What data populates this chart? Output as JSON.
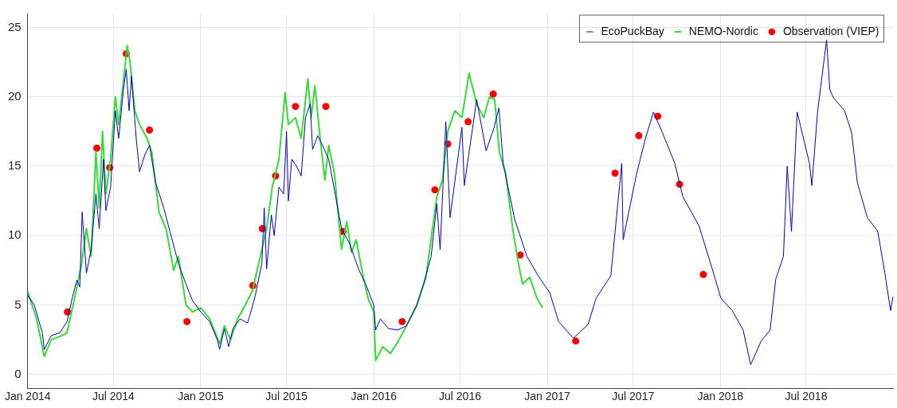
{
  "chart_data": {
    "type": "line",
    "xlim": [
      "2014-01-01",
      "2019-01-01"
    ],
    "xticks": [
      {
        "value": "2014-01-01",
        "label": "Jan 2014"
      },
      {
        "value": "2014-07-01",
        "label": "Jul 2014"
      },
      {
        "value": "2015-01-01",
        "label": "Jan 2015"
      },
      {
        "value": "2015-07-01",
        "label": "Jul 2015"
      },
      {
        "value": "2016-01-01",
        "label": "Jan 2016"
      },
      {
        "value": "2016-07-01",
        "label": "Jul 2016"
      },
      {
        "value": "2017-01-01",
        "label": "Jan 2017"
      },
      {
        "value": "2017-07-01",
        "label": "Jul 2017"
      },
      {
        "value": "2018-01-01",
        "label": "Jan 2018"
      },
      {
        "value": "2018-07-01",
        "label": "Jul 2018"
      }
    ],
    "ylim": [
      -1,
      26
    ],
    "yticks": [
      0,
      5,
      10,
      15,
      20,
      25
    ],
    "grid": true,
    "legend": "top right",
    "marker": "none",
    "line_style": "solid",
    "series": [
      {
        "name": "EcoPuckBay",
        "type": "line",
        "color": "#0000cc",
        "x": [
          "2014-01-01",
          "2014-01-15",
          "2014-02-01",
          "2014-02-05",
          "2014-02-20",
          "2014-03-10",
          "2014-03-25",
          "2014-04-05",
          "2014-04-15",
          "2014-04-21",
          "2014-04-26",
          "2014-05-05",
          "2014-05-15",
          "2014-05-25",
          "2014-06-01",
          "2014-06-10",
          "2014-06-15",
          "2014-06-25",
          "2014-07-05",
          "2014-07-12",
          "2014-07-22",
          "2014-07-28",
          "2014-08-03",
          "2014-08-08",
          "2014-08-18",
          "2014-08-25",
          "2014-09-05",
          "2014-09-15",
          "2014-09-28",
          "2014-10-15",
          "2014-11-01",
          "2014-11-15",
          "2014-12-01",
          "2014-12-15",
          "2015-01-01",
          "2015-01-20",
          "2015-02-05",
          "2015-02-10",
          "2015-02-20",
          "2015-03-01",
          "2015-03-10",
          "2015-03-25",
          "2015-04-10",
          "2015-04-25",
          "2015-05-10",
          "2015-05-15",
          "2015-05-20",
          "2015-05-30",
          "2015-06-05",
          "2015-06-15",
          "2015-06-25",
          "2015-07-01",
          "2015-07-05",
          "2015-07-12",
          "2015-07-22",
          "2015-08-01",
          "2015-08-10",
          "2015-08-20",
          "2015-08-25",
          "2015-09-05",
          "2015-09-15",
          "2015-09-28",
          "2015-10-10",
          "2015-10-25",
          "2015-11-10",
          "2015-12-01",
          "2015-12-15",
          "2016-01-01",
          "2016-01-05",
          "2016-01-15",
          "2016-02-01",
          "2016-02-20",
          "2016-03-10",
          "2016-04-01",
          "2016-04-15",
          "2016-05-01",
          "2016-05-13",
          "2016-05-20",
          "2016-06-01",
          "2016-06-10",
          "2016-07-05",
          "2016-07-10",
          "2016-08-05",
          "2016-08-25",
          "2016-09-10",
          "2016-09-21",
          "2016-09-30",
          "2016-10-24",
          "2016-11-19",
          "2016-12-13",
          "2017-01-06",
          "2017-01-25",
          "2017-02-25",
          "2017-03-28",
          "2017-04-14",
          "2017-05-15",
          "2017-05-30",
          "2017-06-07",
          "2017-06-10",
          "2017-07-08",
          "2017-07-27",
          "2017-08-13",
          "2017-09-01",
          "2017-09-27",
          "2017-10-14",
          "2017-11-17",
          "2017-12-14",
          "2018-01-02",
          "2018-01-26",
          "2018-02-18",
          "2018-03-06",
          "2018-03-28",
          "2018-04-16",
          "2018-04-28",
          "2018-05-14",
          "2018-05-22",
          "2018-05-31",
          "2018-06-12",
          "2018-07-08",
          "2018-07-13",
          "2018-07-25",
          "2018-08-13",
          "2018-08-20",
          "2018-08-28",
          "2018-09-20",
          "2018-10-05",
          "2018-10-17",
          "2018-11-07",
          "2018-11-29",
          "2018-12-14",
          "2018-12-26",
          "2018-12-31"
        ],
        "values": [
          5.7,
          5.0,
          3.0,
          1.8,
          2.8,
          3.0,
          3.8,
          5.5,
          6.8,
          6.3,
          11.7,
          7.3,
          9.0,
          13.0,
          10.5,
          15.5,
          11.8,
          13.5,
          19.0,
          17.0,
          20.5,
          22.0,
          19.0,
          21.5,
          17.0,
          14.6,
          15.8,
          16.5,
          13.8,
          12.0,
          9.8,
          8.0,
          6.5,
          5.3,
          4.5,
          3.8,
          2.5,
          1.8,
          3.3,
          2.0,
          3.3,
          4.0,
          3.7,
          5.5,
          8.0,
          12.0,
          7.6,
          11.5,
          10.0,
          13.5,
          13.0,
          17.5,
          12.5,
          15.5,
          15.0,
          14.3,
          18.5,
          19.5,
          16.2,
          17.2,
          16.5,
          15.5,
          13.3,
          10.5,
          9.5,
          7.5,
          6.5,
          5.0,
          3.2,
          4.0,
          3.3,
          3.2,
          3.5,
          5.0,
          6.5,
          8.5,
          12.3,
          9.0,
          18.2,
          11.3,
          17.8,
          13.6,
          19.8,
          16.1,
          17.7,
          19.2,
          15.2,
          11.2,
          8.5,
          7.1,
          5.9,
          3.8,
          2.6,
          3.6,
          5.5,
          7.1,
          12.4,
          15.2,
          9.7,
          14.4,
          17.0,
          18.9,
          17.4,
          15.2,
          12.8,
          10.7,
          7.7,
          5.5,
          4.6,
          3.2,
          0.7,
          2.4,
          3.2,
          6.9,
          8.5,
          15.0,
          10.3,
          18.9,
          15.2,
          13.6,
          18.9,
          24.1,
          20.5,
          19.9,
          19.0,
          17.4,
          13.8,
          11.3,
          10.3,
          7.3,
          4.6,
          5.6
        ]
      },
      {
        "name": "NEMO-Nordic",
        "type": "line",
        "color": "#33dd33",
        "x": [
          "2014-01-01",
          "2014-01-20",
          "2014-02-05",
          "2014-02-20",
          "2014-03-15",
          "2014-03-25",
          "2014-04-10",
          "2014-04-25",
          "2014-05-05",
          "2014-05-15",
          "2014-05-25",
          "2014-06-01",
          "2014-06-08",
          "2014-06-15",
          "2014-06-25",
          "2014-07-05",
          "2014-07-12",
          "2014-07-20",
          "2014-07-30",
          "2014-08-05",
          "2014-08-15",
          "2014-08-25",
          "2014-09-10",
          "2014-09-20",
          "2014-10-05",
          "2014-10-20",
          "2014-11-05",
          "2014-11-15",
          "2014-12-01",
          "2014-12-15",
          "2015-01-01",
          "2015-01-20",
          "2015-02-10",
          "2015-02-20",
          "2015-03-05",
          "2015-03-20",
          "2015-04-05",
          "2015-04-20",
          "2015-05-10",
          "2015-05-20",
          "2015-06-01",
          "2015-06-15",
          "2015-06-28",
          "2015-07-05",
          "2015-07-20",
          "2015-08-01",
          "2015-08-15",
          "2015-08-22",
          "2015-08-30",
          "2015-09-10",
          "2015-09-20",
          "2015-09-28",
          "2015-10-10",
          "2015-10-25",
          "2015-11-05",
          "2015-11-15",
          "2015-11-25",
          "2015-12-10",
          "2015-12-20",
          "2016-01-01",
          "2016-01-05",
          "2016-01-20",
          "2016-02-05",
          "2016-02-20",
          "2016-03-10",
          "2016-04-01",
          "2016-04-20",
          "2016-05-13",
          "2016-05-25",
          "2016-06-05",
          "2016-06-20",
          "2016-07-05",
          "2016-07-20",
          "2016-08-05",
          "2016-08-20",
          "2016-09-01",
          "2016-09-12",
          "2016-09-22",
          "2016-10-05",
          "2016-10-20",
          "2016-11-01",
          "2016-11-10",
          "2016-11-25",
          "2016-12-10",
          "2016-12-22"
        ],
        "values": [
          6.0,
          4.0,
          1.3,
          2.5,
          2.8,
          3.0,
          5.5,
          8.0,
          10.5,
          8.5,
          16.0,
          12.0,
          17.5,
          13.0,
          15.5,
          20.0,
          18.0,
          20.5,
          23.7,
          22.5,
          19.0,
          18.0,
          17.0,
          16.0,
          11.7,
          10.5,
          7.5,
          8.5,
          5.0,
          4.5,
          4.8,
          4.0,
          2.2,
          3.5,
          2.5,
          4.0,
          5.0,
          6.0,
          9.0,
          10.5,
          13.5,
          15.5,
          20.3,
          18.0,
          18.5,
          17.0,
          21.3,
          18.5,
          20.8,
          17.0,
          14.0,
          16.5,
          14.5,
          9.0,
          11.0,
          8.8,
          9.7,
          7.0,
          5.5,
          4.5,
          1.0,
          2.0,
          1.5,
          2.3,
          3.5,
          5.0,
          7.0,
          12.8,
          14.0,
          17.5,
          19.0,
          18.5,
          21.7,
          19.5,
          18.5,
          20.0,
          19.8,
          16.0,
          14.5,
          10.5,
          8.0,
          6.5,
          7.0,
          5.5,
          4.8
        ]
      },
      {
        "name": "Observation (VIEP)",
        "type": "scatter",
        "color": "#ff0000",
        "marker": "circle",
        "x": [
          "2014-03-26",
          "2014-05-27",
          "2014-06-23",
          "2014-07-28",
          "2014-09-15",
          "2014-12-03",
          "2015-04-21",
          "2015-05-11",
          "2015-06-08",
          "2015-07-20",
          "2015-09-22",
          "2015-10-28",
          "2016-03-01",
          "2016-05-09",
          "2016-06-05",
          "2016-07-18",
          "2016-09-09",
          "2016-11-05",
          "2017-03-02",
          "2017-05-24",
          "2017-07-13",
          "2017-08-22",
          "2017-10-07",
          "2017-11-26"
        ],
        "values": [
          4.5,
          16.3,
          14.9,
          23.1,
          17.6,
          3.8,
          6.4,
          10.5,
          14.3,
          19.3,
          19.3,
          10.3,
          3.8,
          13.3,
          16.6,
          18.2,
          20.2,
          8.6,
          2.4,
          14.5,
          17.2,
          18.6,
          13.7,
          7.2
        ]
      }
    ]
  }
}
